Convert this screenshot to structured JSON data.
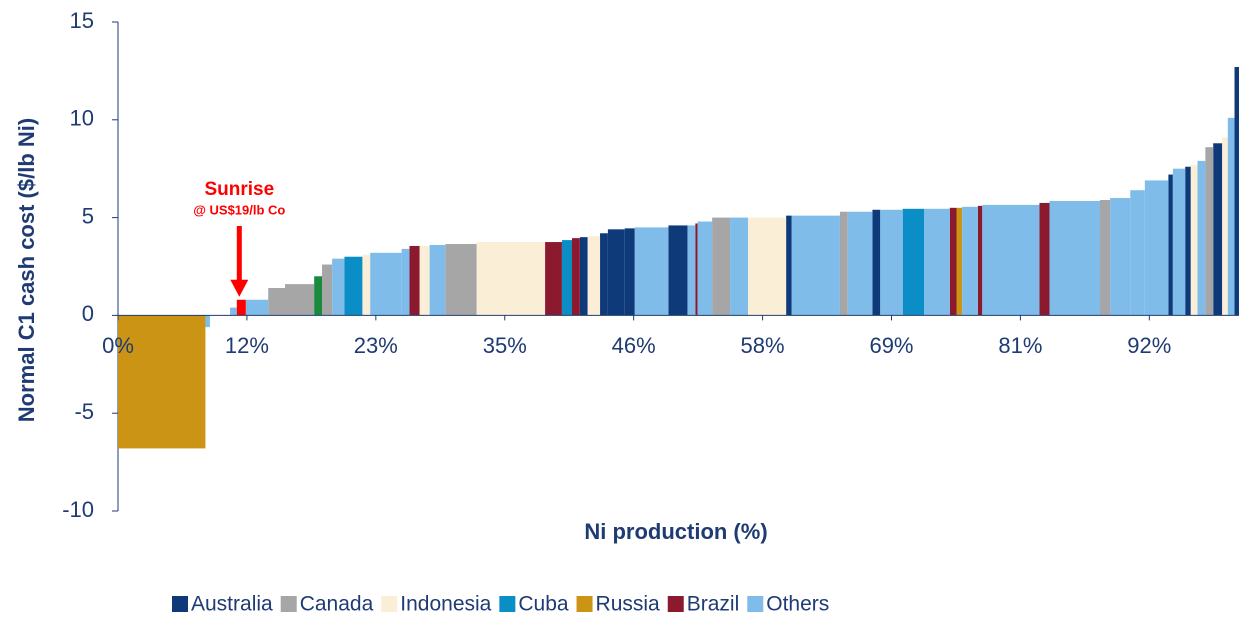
{
  "chart_data": {
    "type": "cost-curve",
    "ylabel": "Normal C1 cash cost ($/lb Ni)",
    "xlabel": "Ni production (%)",
    "xlim": [
      0,
      100
    ],
    "ylim": [
      -10,
      15
    ],
    "yticks": [
      -10,
      -5,
      0,
      5,
      10,
      15
    ],
    "xticks": [
      {
        "value": 0,
        "label": "0%"
      },
      {
        "value": 11.5,
        "label": "12%"
      },
      {
        "value": 23,
        "label": "23%"
      },
      {
        "value": 34.5,
        "label": "35%"
      },
      {
        "value": 46,
        "label": "46%"
      },
      {
        "value": 57.5,
        "label": "58%"
      },
      {
        "value": 69,
        "label": "69%"
      },
      {
        "value": 80.5,
        "label": "81%"
      },
      {
        "value": 92,
        "label": "92%"
      }
    ],
    "highlight": {
      "name": "Sunrise",
      "note": "@ US$19/lb Co",
      "color": "#ff0000",
      "x0": 10.6,
      "x1": 11.4,
      "value": 0.8
    },
    "series": [
      {
        "name": "Australia",
        "color": "#0e3a7a",
        "x0": [
          41.2,
          43.0,
          43.7,
          45.2,
          49.1,
          59.6,
          67.3,
          93.7,
          95.2,
          97.7,
          99.6
        ],
        "x1": [
          41.9,
          43.7,
          45.2,
          46.1,
          50.8,
          60.1,
          68.0,
          94.1,
          95.7,
          98.5,
          100
        ],
        "values": [
          4.0,
          4.2,
          4.4,
          4.45,
          4.6,
          5.1,
          5.4,
          7.2,
          7.6,
          8.8,
          12.7
        ]
      },
      {
        "name": "Canada",
        "color": "#a6a6a6",
        "x0": [
          13.4,
          14.9,
          18.2,
          29.2,
          53.0,
          64.4,
          87.6,
          97.0
        ],
        "x1": [
          14.9,
          17.5,
          19.1,
          32.0,
          54.6,
          65.1,
          88.5,
          97.7
        ],
        "values": [
          1.4,
          1.6,
          2.6,
          3.65,
          5.0,
          5.3,
          5.9,
          8.6
        ]
      },
      {
        "name": "Indonesia",
        "color": "#fbeed6",
        "x0": [
          21.8,
          26.9,
          32.0,
          41.9,
          56.2,
          95.7,
          98.5
        ],
        "x1": [
          22.5,
          27.8,
          38.1,
          43.0,
          59.6,
          96.3,
          99.0
        ],
        "values": [
          3.1,
          3.55,
          3.75,
          4.05,
          5.0,
          7.7,
          9.1
        ]
      },
      {
        "name": "Cuba",
        "color": "#0a8ec5",
        "x0": [
          20.2,
          39.6,
          70.0
        ],
        "x1": [
          21.8,
          40.5,
          71.9
        ],
        "values": [
          3.0,
          3.85,
          5.45
        ]
      },
      {
        "name": "Russia",
        "color": "#cc9414",
        "x0": [
          0,
          74.8
        ],
        "x1": [
          7.8,
          75.3
        ],
        "values": [
          -6.8,
          5.5
        ]
      },
      {
        "name": "Brazil",
        "color": "#8b1a2e",
        "x0": [
          26.0,
          38.1,
          40.5,
          51.5,
          74.2,
          76.7,
          82.2
        ],
        "x1": [
          26.9,
          39.6,
          41.2,
          51.7,
          74.8,
          77.1,
          83.1
        ],
        "values": [
          3.55,
          3.75,
          3.95,
          4.7,
          5.5,
          5.6,
          5.75
        ]
      },
      {
        "name": "Others",
        "color": "#7fbce9",
        "x0": [
          7.8,
          10.0,
          11.4,
          19.1,
          22.5,
          25.3,
          27.8,
          46.1,
          50.8,
          51.7,
          54.6,
          60.1,
          65.1,
          68.0,
          71.9,
          75.3,
          77.1,
          83.1,
          88.5,
          90.3,
          91.6,
          94.1,
          96.3,
          99.0
        ],
        "x1": [
          8.2,
          10.6,
          13.4,
          20.2,
          25.3,
          26.0,
          29.2,
          49.1,
          51.5,
          53.0,
          56.2,
          64.4,
          67.3,
          70.0,
          74.2,
          76.7,
          82.2,
          87.6,
          90.3,
          91.6,
          93.7,
          95.2,
          97.0,
          99.6
        ],
        "values": [
          -0.6,
          0.4,
          0.8,
          2.9,
          3.2,
          3.4,
          3.6,
          4.5,
          4.6,
          4.8,
          5.0,
          5.1,
          5.3,
          5.4,
          5.45,
          5.55,
          5.65,
          5.85,
          6.0,
          6.4,
          6.9,
          7.5,
          7.9,
          10.1
        ]
      },
      {
        "color": "#1a8a3c",
        "x0": [
          17.5
        ],
        "x1": [
          18.2
        ],
        "values": [
          2.0
        ]
      }
    ]
  }
}
